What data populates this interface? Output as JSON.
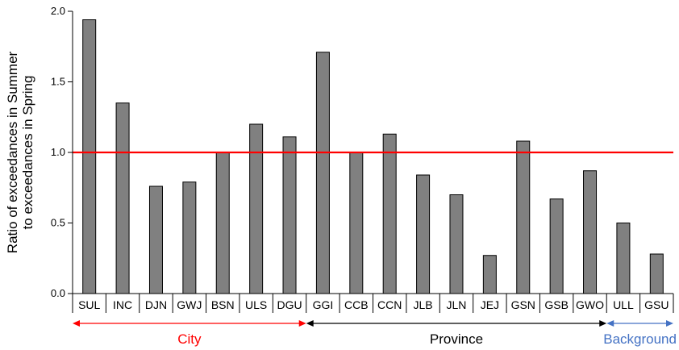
{
  "chart_data": {
    "type": "bar",
    "ylabel": [
      "Ratio of exceedances in Summer",
      "to exceedances in Spring"
    ],
    "xlabel": "",
    "ylim": [
      0,
      2.0
    ],
    "yticks": [
      {
        "value": 0.0,
        "label": "0.0"
      },
      {
        "value": 0.5,
        "label": "0.5"
      },
      {
        "value": 1.0,
        "label": "1.0"
      },
      {
        "value": 1.5,
        "label": "1.5"
      },
      {
        "value": 2.0,
        "label": "2.0"
      }
    ],
    "categories": [
      "SUL",
      "INC",
      "DJN",
      "GWJ",
      "BSN",
      "ULS",
      "DGU",
      "GGI",
      "CCB",
      "CCN",
      "JLB",
      "JLN",
      "JEJ",
      "GSN",
      "GSB",
      "GWO",
      "ULL",
      "GSU"
    ],
    "values": [
      1.94,
      1.35,
      0.76,
      0.79,
      1.0,
      1.2,
      1.11,
      1.71,
      1.0,
      1.13,
      0.84,
      0.7,
      0.27,
      1.08,
      0.67,
      0.87,
      0.5,
      0.28
    ],
    "reference_line": {
      "value": 1.0,
      "color": "#ff0000"
    },
    "bar_color": "#808080",
    "groups": [
      {
        "label": "City",
        "start": 0,
        "end": 6,
        "color": "#ff0000"
      },
      {
        "label": "Province",
        "start": 7,
        "end": 15,
        "color": "#000000"
      },
      {
        "label": "Background",
        "start": 16,
        "end": 17,
        "color": "#4472c4"
      }
    ]
  }
}
